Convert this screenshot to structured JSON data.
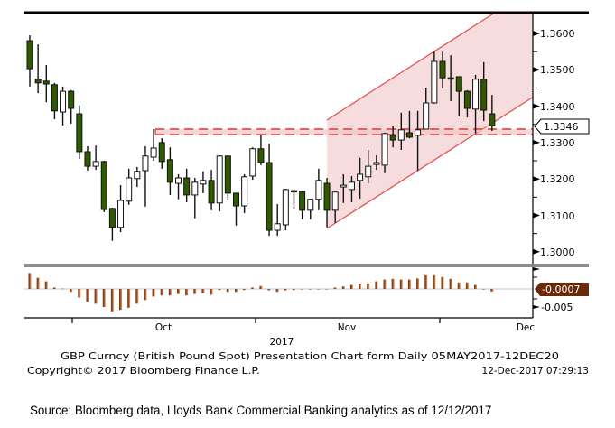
{
  "chart_data": {
    "type": "candlestick",
    "instrument": "GBP Curncy (British Pound Spot)",
    "frequency": "Daily",
    "candles": [
      {
        "o": 1.358,
        "h": 1.3595,
        "l": 1.3454,
        "c": 1.3503
      },
      {
        "o": 1.3474,
        "h": 1.357,
        "l": 1.3436,
        "c": 1.3464
      },
      {
        "o": 1.3469,
        "h": 1.3513,
        "l": 1.3411,
        "c": 1.3461
      },
      {
        "o": 1.3459,
        "h": 1.3464,
        "l": 1.3364,
        "c": 1.3387
      },
      {
        "o": 1.3384,
        "h": 1.3454,
        "l": 1.3347,
        "c": 1.3441
      },
      {
        "o": 1.3441,
        "h": 1.3444,
        "l": 1.3352,
        "c": 1.3394
      },
      {
        "o": 1.3379,
        "h": 1.3402,
        "l": 1.3255,
        "c": 1.3275
      },
      {
        "o": 1.3275,
        "h": 1.329,
        "l": 1.3223,
        "c": 1.3235
      },
      {
        "o": 1.3235,
        "h": 1.3292,
        "l": 1.3225,
        "c": 1.3248
      },
      {
        "o": 1.3248,
        "h": 1.325,
        "l": 1.3109,
        "c": 1.3116
      },
      {
        "o": 1.3119,
        "h": 1.3121,
        "l": 1.303,
        "c": 1.3067
      },
      {
        "o": 1.3067,
        "h": 1.3183,
        "l": 1.3054,
        "c": 1.3141
      },
      {
        "o": 1.3139,
        "h": 1.3228,
        "l": 1.3129,
        "c": 1.3203
      },
      {
        "o": 1.3201,
        "h": 1.3233,
        "l": 1.3178,
        "c": 1.3221
      },
      {
        "o": 1.3223,
        "h": 1.329,
        "l": 1.3124,
        "c": 1.3263
      },
      {
        "o": 1.326,
        "h": 1.3337,
        "l": 1.325,
        "c": 1.3285
      },
      {
        "o": 1.33,
        "h": 1.3312,
        "l": 1.3228,
        "c": 1.3248
      },
      {
        "o": 1.3253,
        "h": 1.3287,
        "l": 1.3156,
        "c": 1.3191
      },
      {
        "o": 1.3188,
        "h": 1.3213,
        "l": 1.3144,
        "c": 1.3203
      },
      {
        "o": 1.3203,
        "h": 1.3228,
        "l": 1.3136,
        "c": 1.3156
      },
      {
        "o": 1.3156,
        "h": 1.3203,
        "l": 1.3092,
        "c": 1.3191
      },
      {
        "o": 1.3186,
        "h": 1.3221,
        "l": 1.3161,
        "c": 1.3196
      },
      {
        "o": 1.3196,
        "h": 1.3225,
        "l": 1.3114,
        "c": 1.3134
      },
      {
        "o": 1.3134,
        "h": 1.3265,
        "l": 1.3111,
        "c": 1.3263
      },
      {
        "o": 1.3263,
        "h": 1.3265,
        "l": 1.3141,
        "c": 1.3161
      },
      {
        "o": 1.3161,
        "h": 1.3161,
        "l": 1.3072,
        "c": 1.3126
      },
      {
        "o": 1.3126,
        "h": 1.3213,
        "l": 1.3106,
        "c": 1.3206
      },
      {
        "o": 1.3208,
        "h": 1.3287,
        "l": 1.3198,
        "c": 1.3283
      },
      {
        "o": 1.3283,
        "h": 1.332,
        "l": 1.3238,
        "c": 1.3245
      },
      {
        "o": 1.3245,
        "h": 1.3297,
        "l": 1.3044,
        "c": 1.3059
      },
      {
        "o": 1.3059,
        "h": 1.3131,
        "l": 1.3044,
        "c": 1.3077
      },
      {
        "o": 1.3074,
        "h": 1.3173,
        "l": 1.3059,
        "c": 1.3171
      },
      {
        "o": 1.3168,
        "h": 1.3171,
        "l": 1.3119,
        "c": 1.3166
      },
      {
        "o": 1.3166,
        "h": 1.3168,
        "l": 1.3089,
        "c": 1.3114
      },
      {
        "o": 1.3114,
        "h": 1.3146,
        "l": 1.3089,
        "c": 1.3144
      },
      {
        "o": 1.3144,
        "h": 1.3228,
        "l": 1.3114,
        "c": 1.3196
      },
      {
        "o": 1.3188,
        "h": 1.3203,
        "l": 1.3067,
        "c": 1.3114
      },
      {
        "o": 1.3114,
        "h": 1.3164,
        "l": 1.3079,
        "c": 1.3164
      },
      {
        "o": 1.3178,
        "h": 1.3213,
        "l": 1.3134,
        "c": 1.3183
      },
      {
        "o": 1.3171,
        "h": 1.3208,
        "l": 1.3136,
        "c": 1.3191
      },
      {
        "o": 1.3196,
        "h": 1.3258,
        "l": 1.3146,
        "c": 1.3213
      },
      {
        "o": 1.3206,
        "h": 1.328,
        "l": 1.3188,
        "c": 1.3235
      },
      {
        "o": 1.324,
        "h": 1.3265,
        "l": 1.3225,
        "c": 1.3245
      },
      {
        "o": 1.3238,
        "h": 1.3327,
        "l": 1.3216,
        "c": 1.3325
      },
      {
        "o": 1.332,
        "h": 1.3345,
        "l": 1.3287,
        "c": 1.3307
      },
      {
        "o": 1.3307,
        "h": 1.3382,
        "l": 1.328,
        "c": 1.3335
      },
      {
        "o": 1.3327,
        "h": 1.3387,
        "l": 1.3312,
        "c": 1.3315
      },
      {
        "o": 1.332,
        "h": 1.3387,
        "l": 1.3223,
        "c": 1.3335
      },
      {
        "o": 1.3337,
        "h": 1.3451,
        "l": 1.3337,
        "c": 1.3409
      },
      {
        "o": 1.3409,
        "h": 1.355,
        "l": 1.3407,
        "c": 1.3523
      },
      {
        "o": 1.3523,
        "h": 1.355,
        "l": 1.3449,
        "c": 1.3478
      },
      {
        "o": 1.3478,
        "h": 1.354,
        "l": 1.3414,
        "c": 1.3476
      },
      {
        "o": 1.3481,
        "h": 1.3481,
        "l": 1.3372,
        "c": 1.3441
      },
      {
        "o": 1.3441,
        "h": 1.3444,
        "l": 1.3369,
        "c": 1.3394
      },
      {
        "o": 1.3392,
        "h": 1.3486,
        "l": 1.3325,
        "c": 1.3474
      },
      {
        "o": 1.3474,
        "h": 1.3521,
        "l": 1.3359,
        "c": 1.3389
      },
      {
        "o": 1.3379,
        "h": 1.3431,
        "l": 1.3332,
        "c": 1.3346
      }
    ],
    "ylim": [
      1.2967,
      1.3657
    ],
    "y_ticks": [
      "1.3600",
      "1.3500",
      "1.3400",
      "1.3300",
      "1.3200",
      "1.3100",
      "1.3000"
    ],
    "last_price": "1.3346",
    "x_ticks": [
      "Oct",
      "Nov",
      "Dec"
    ],
    "x_year": "2017",
    "annotations": {
      "resistance_band": {
        "from_index": 15,
        "upper": 1.3337,
        "lower": 1.3322
      },
      "channel_upper": {
        "start_index": 36,
        "start_price": 1.3362,
        "end_index": 56.2,
        "end_price": 1.3655
      },
      "channel_lower": {
        "start_index": 36,
        "start_price": 1.3064,
        "end_index": 60.9,
        "end_price": 1.3424
      }
    },
    "indicator": {
      "type": "histogram",
      "values": [
        0.0044,
        0.0031,
        0.0021,
        0.0004,
        0.0001,
        -0.0008,
        -0.0024,
        -0.0035,
        -0.0041,
        -0.005,
        -0.0062,
        -0.0058,
        -0.0052,
        -0.0041,
        -0.0031,
        -0.0021,
        -0.0018,
        -0.0018,
        -0.0014,
        -0.0018,
        -0.0014,
        -0.0012,
        -0.0016,
        -0.0003,
        -0.0008,
        -0.0008,
        -0.0003,
        0.0004,
        0.0008,
        -0.0004,
        -0.0008,
        -0.0004,
        -0.0003,
        -0.0001,
        -0.0001,
        -0.0001,
        0.0,
        0.0004,
        0.0007,
        0.0011,
        0.0015,
        0.0015,
        0.0021,
        0.0026,
        0.0028,
        0.0026,
        0.0026,
        0.0029,
        0.0038,
        0.0038,
        0.0033,
        0.0028,
        0.0018,
        0.0018,
        0.0011,
        0.0,
        -0.0007
      ],
      "last_value": "-0.0007",
      "y_tick": "-0.005"
    },
    "colors": {
      "bear": "#2f5a00",
      "bull": "#ffffff",
      "channel": "#e05a5a",
      "channel_fill": "#f6dcdc",
      "hist": "#8a3d12",
      "last_value_box": "#6a2a0a"
    }
  },
  "footer": {
    "description": "GBP Curncy (British Pound Spot) Presentation Chart form  Daily 05MAY2017-12DEC20",
    "copyright": "Copyright© 2017 Bloomberg Finance L.P.",
    "timestamp": "12-Dec-2017 07:29:13"
  },
  "source": "Source: Bloomberg data, Lloyds Bank Commercial Banking analytics as of 12/12/2017"
}
